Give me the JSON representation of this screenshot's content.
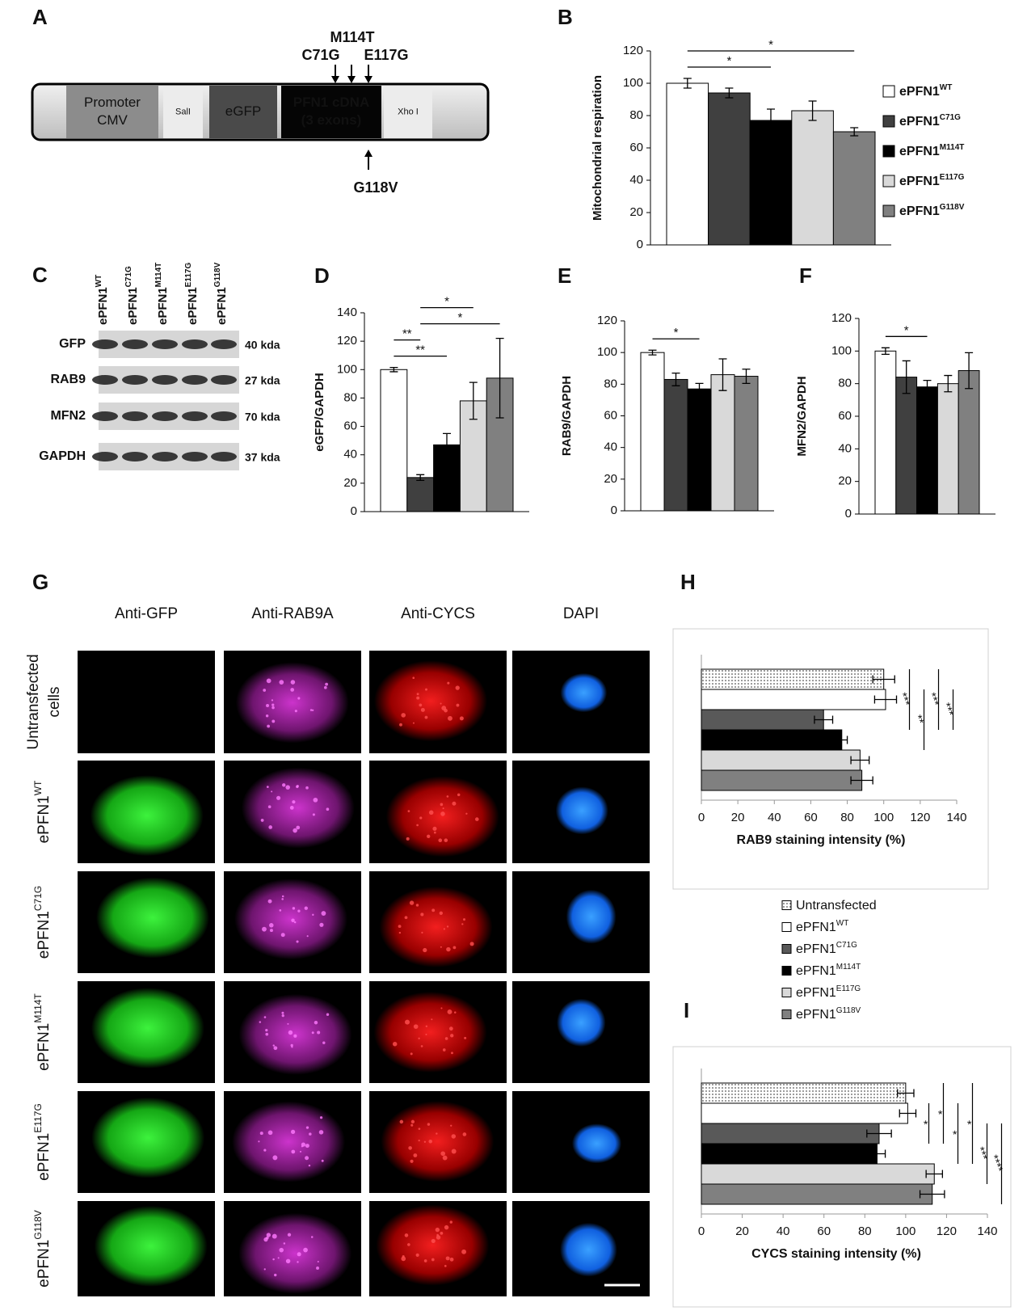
{
  "panel_labels": [
    "A",
    "B",
    "C",
    "D",
    "E",
    "F",
    "G",
    "H",
    "I"
  ],
  "construct": {
    "segments": [
      {
        "lines": [
          "Promoter",
          "CMV"
        ]
      },
      {
        "lines": [
          "SalI"
        ]
      },
      {
        "lines": [
          "eGFP"
        ]
      },
      {
        "lines": [
          "PFN1 cDNA",
          "(3 exons)"
        ]
      },
      {
        "lines": [
          "Xho I"
        ]
      }
    ],
    "mutations_top": [
      "C71G",
      "M114T",
      "E117G"
    ],
    "mutations_bottom": [
      "G118V"
    ]
  },
  "blot": {
    "lanes": [
      "ePFN1WT",
      "ePFN1C71G",
      "ePFN1M114T",
      "ePFN1E117G",
      "ePFN1G118V"
    ],
    "rows": [
      {
        "protein": "GFP",
        "size": "40 kda"
      },
      {
        "protein": "RAB9",
        "size": "27 kda"
      },
      {
        "protein": "MFN2",
        "size": "70 kda"
      },
      {
        "protein": "GAPDH",
        "size": "37 kda"
      }
    ]
  },
  "microscopy": {
    "columns": [
      "Anti-GFP",
      "Anti-RAB9A",
      "Anti-CYCS",
      "DAPI"
    ],
    "rows": [
      {
        "lines": [
          "Untransfected",
          "cells"
        ]
      },
      {
        "lines": [
          "ePFN1WT"
        ]
      },
      {
        "lines": [
          "ePFN1C71G"
        ]
      },
      {
        "lines": [
          "ePFN1M114T"
        ]
      },
      {
        "lines": [
          "ePFN1E117G"
        ]
      },
      {
        "lines": [
          "ePFN1G118V"
        ]
      }
    ]
  },
  "chart_data": [
    {
      "type": "bar",
      "y_label": "Mitochondrial respiration",
      "ylim": [
        0,
        120
      ],
      "yticks": [
        0,
        20,
        40,
        60,
        80,
        100,
        120
      ],
      "series": [
        {
          "name": "ePFN1WT",
          "color": "#ffffff",
          "values": [
            100
          ],
          "errors": [
            3
          ]
        },
        {
          "name": "ePFN1C71G",
          "color": "#404040",
          "values": [
            94
          ],
          "errors": [
            3
          ]
        },
        {
          "name": "ePFN1M114T",
          "color": "#000000",
          "values": [
            77
          ],
          "errors": [
            7
          ]
        },
        {
          "name": "ePFN1E117G",
          "color": "#d9d9d9",
          "values": [
            83
          ],
          "errors": [
            6
          ]
        },
        {
          "name": "ePFN1G118V",
          "color": "#808080",
          "values": [
            70
          ],
          "errors": [
            2.5
          ]
        }
      ],
      "annotations": [
        {
          "text": "*",
          "from": 0,
          "to": 2
        },
        {
          "text": "*",
          "from": 0,
          "to": 4
        }
      ]
    },
    {
      "type": "bar",
      "y_label": "eGFP/GAPDH",
      "ylim": [
        0,
        140
      ],
      "yticks": [
        0,
        20,
        40,
        60,
        80,
        100,
        120,
        140
      ],
      "values": [
        100,
        24,
        47,
        78,
        94
      ],
      "errors": [
        1.5,
        2,
        8,
        13,
        28
      ],
      "colors": [
        "#ffffff",
        "#404040",
        "#000000",
        "#d9d9d9",
        "#808080"
      ],
      "annotations": [
        {
          "text": "**",
          "from": 0,
          "to": 2
        },
        {
          "text": "**",
          "from": 0,
          "to": 1
        },
        {
          "text": "*",
          "from": 1,
          "to": 4
        },
        {
          "text": "*",
          "from": 1,
          "to": 3
        }
      ]
    },
    {
      "type": "bar",
      "y_label": "RAB9/GAPDH",
      "ylim": [
        0,
        120
      ],
      "yticks": [
        0,
        20,
        40,
        60,
        80,
        100,
        120
      ],
      "values": [
        100,
        83,
        77,
        86,
        85
      ],
      "errors": [
        1.5,
        4,
        3.5,
        10,
        4.5
      ],
      "colors": [
        "#ffffff",
        "#404040",
        "#000000",
        "#d9d9d9",
        "#808080"
      ],
      "annotations": [
        {
          "text": "*",
          "from": 0,
          "to": 2
        }
      ]
    },
    {
      "type": "bar",
      "y_label": "MFN2/GAPDH",
      "ylim": [
        0,
        120
      ],
      "yticks": [
        0,
        20,
        40,
        60,
        80,
        100,
        120
      ],
      "values": [
        100,
        84,
        78,
        80,
        88
      ],
      "errors": [
        2,
        10,
        4,
        5,
        11
      ],
      "colors": [
        "#ffffff",
        "#404040",
        "#000000",
        "#d9d9d9",
        "#808080"
      ],
      "annotations": [
        {
          "text": "*",
          "from": 0,
          "to": 2
        }
      ]
    },
    {
      "type": "bar",
      "orientation": "horizontal",
      "x_label": "RAB9 staining intensity (%)",
      "xlim": [
        0,
        140
      ],
      "xticks": [
        0,
        20,
        40,
        60,
        80,
        100,
        120,
        140
      ],
      "series": [
        {
          "name": "Untransfected",
          "color": "#ffffff",
          "pattern": "dots",
          "values": [
            100
          ],
          "errors": [
            6
          ]
        },
        {
          "name": "ePFN1WT",
          "color": "#ffffff",
          "values": [
            101
          ],
          "errors": [
            6
          ]
        },
        {
          "name": "ePFN1C71G",
          "color": "#595959",
          "values": [
            67
          ],
          "errors": [
            5
          ]
        },
        {
          "name": "ePFN1M114T",
          "color": "#000000",
          "values": [
            77
          ],
          "errors": [
            3
          ]
        },
        {
          "name": "ePFN1E117G",
          "color": "#d9d9d9",
          "values": [
            87
          ],
          "errors": [
            5
          ]
        },
        {
          "name": "ePFN1G118V",
          "color": "#808080",
          "values": [
            88
          ],
          "errors": [
            6
          ]
        }
      ],
      "annotations": [
        {
          "text": "***",
          "from": 0,
          "to": 2
        },
        {
          "text": "**",
          "from": 1,
          "to": 3
        },
        {
          "text": "***",
          "from": 0,
          "to": 2
        },
        {
          "text": "***",
          "from": 1,
          "to": 2
        }
      ]
    },
    {
      "type": "bar",
      "orientation": "horizontal",
      "x_label": "CYCS staining intensity (%)",
      "xlim": [
        0,
        140
      ],
      "xticks": [
        0,
        20,
        40,
        60,
        80,
        100,
        120,
        140
      ],
      "values": [
        100,
        101,
        87,
        86,
        114,
        113
      ],
      "errors": [
        4,
        4,
        6,
        4,
        4,
        6
      ],
      "colors": [
        "#ffffff",
        "#ffffff",
        "#595959",
        "#000000",
        "#d9d9d9",
        "#808080"
      ],
      "patterns": [
        "dots",
        null,
        null,
        null,
        null,
        null
      ],
      "annotations": [
        {
          "text": "*",
          "from": 1,
          "to": 2
        },
        {
          "text": "*",
          "from": 0,
          "to": 2
        },
        {
          "text": "*",
          "from": 1,
          "to": 3
        },
        {
          "text": "*",
          "from": 0,
          "to": 3
        },
        {
          "text": "***",
          "from": 2,
          "to": 4
        },
        {
          "text": "****",
          "from": 2,
          "to": 5
        }
      ]
    }
  ]
}
